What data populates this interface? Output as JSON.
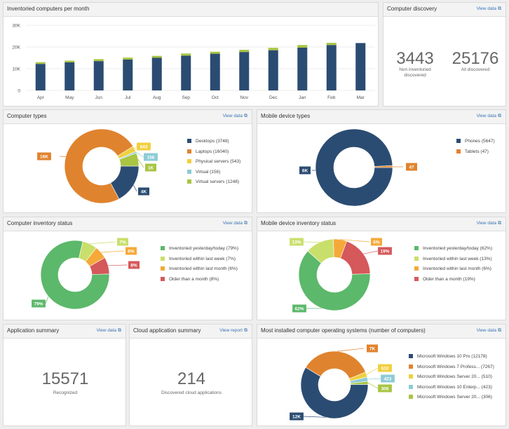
{
  "colors": {
    "navy": "#2b4c72",
    "orange": "#e0832e",
    "yellow": "#f1cf3d",
    "light_blue": "#8ccbd6",
    "lime": "#a8c543",
    "green": "#5cb86a",
    "light_green": "#c9df6b",
    "amber": "#f5a939",
    "red": "#d5585a",
    "link": "#3a74b4"
  },
  "panels": {
    "inventoried": {
      "title": "Inventoried computers per month"
    },
    "discovery": {
      "title": "Computer discovery",
      "link": "View data",
      "non_inventoried": "3443",
      "non_inventoried_label": "Non inventoried discovered",
      "all": "25176",
      "all_label": "All discovered"
    },
    "computer_types": {
      "title": "Computer types",
      "link": "View data",
      "legend": [
        {
          "label": "Desktops (3748)",
          "color": "#2b4c72"
        },
        {
          "label": "Laptops (16040)",
          "color": "#e0832e"
        },
        {
          "label": "Physical servers (543)",
          "color": "#f1cf3d"
        },
        {
          "label": "Virtual (156)",
          "color": "#8ccbd6"
        },
        {
          "label": "Virtual servers (1248)",
          "color": "#a8c543"
        }
      ],
      "labels": {
        "laptops": "16K",
        "physical": "543",
        "virtual": "156",
        "vservers": "1K",
        "desktops": "4K"
      }
    },
    "mobile_types": {
      "title": "Mobile device types",
      "link": "View data",
      "legend": [
        {
          "label": "Phones (5647)",
          "color": "#2b4c72"
        },
        {
          "label": "Tablets (47)",
          "color": "#e0832e"
        }
      ],
      "labels": {
        "phones": "6K",
        "tablets": "47"
      }
    },
    "inventory_status": {
      "title": "Computer inventory status",
      "link": "View data",
      "legend": [
        {
          "label": "Inventoried yesterday/today (79%)",
          "color": "#5cb86a"
        },
        {
          "label": "Inventoried within last week (7%)",
          "color": "#c9df6b"
        },
        {
          "label": "Inventoried within last month (6%)",
          "color": "#f5a939"
        },
        {
          "label": "Older than a month (8%)",
          "color": "#d5585a"
        }
      ],
      "labels": {
        "today": "79%",
        "week": "7%",
        "month": "6%",
        "older": "8%"
      }
    },
    "mobile_status": {
      "title": "Mobile device inventory status",
      "link": "View data",
      "legend": [
        {
          "label": "Inventoried yesterday/today (62%)",
          "color": "#5cb86a"
        },
        {
          "label": "Inventoried within last week (13%)",
          "color": "#c9df6b"
        },
        {
          "label": "Inventoried within last month (6%)",
          "color": "#f5a939"
        },
        {
          "label": "Older than a month (19%)",
          "color": "#d5585a"
        }
      ],
      "labels": {
        "today": "62%",
        "week": "13%",
        "month": "6%",
        "older": "19%"
      }
    },
    "app_summary": {
      "title": "Application summary",
      "link": "View data",
      "value": "15571",
      "value_label": "Recognized"
    },
    "cloud_summary": {
      "title": "Cloud application summary",
      "link": "View report",
      "value": "214",
      "value_label": "Discovered cloud applications"
    },
    "os": {
      "title": "Most installed computer operating systems (number of computers)",
      "link": "View data",
      "legend": [
        {
          "label": "Microsoft Windows 10 Pro (12178)",
          "color": "#2b4c72"
        },
        {
          "label": "Microsoft Windows 7 Profess... (7267)",
          "color": "#e0832e"
        },
        {
          "label": "Microsoft Windows Server 20... (510)",
          "color": "#f1cf3d"
        },
        {
          "label": "Microsoft Windows 10 Enterp... (423)",
          "color": "#8ccbd6"
        },
        {
          "label": "Microsoft Windows Server 20... (306)",
          "color": "#a8c543"
        }
      ],
      "labels": {
        "win10": "12K",
        "win7": "7K",
        "s1": "510",
        "ent": "423",
        "s2": "306"
      }
    }
  },
  "chart_data": [
    {
      "type": "bar",
      "categories": [
        "Apr",
        "May",
        "Jun",
        "Jul",
        "Aug",
        "Sep",
        "Oct",
        "Nov",
        "Dec",
        "Jan",
        "Feb",
        "Mar"
      ],
      "series": [
        {
          "values": [
            12200,
            12900,
            13500,
            14200,
            15000,
            16000,
            16900,
            17700,
            18500,
            19700,
            20900,
            21800
          ]
        },
        {
          "values": [
            800,
            800,
            900,
            900,
            900,
            1000,
            900,
            1000,
            1100,
            1200,
            1000,
            0
          ]
        }
      ],
      "yticks": [
        "0",
        "10K",
        "20K",
        "30K"
      ],
      "ylim": [
        0,
        30000
      ],
      "stacked": true,
      "grid": true
    },
    {
      "type": "pie",
      "categories": [
        "Desktops",
        "Laptops",
        "Physical servers",
        "Virtual",
        "Virtual servers"
      ],
      "values": [
        3748,
        16040,
        543,
        156,
        1248
      ]
    },
    {
      "type": "pie",
      "categories": [
        "Phones",
        "Tablets"
      ],
      "values": [
        5647,
        47
      ]
    },
    {
      "type": "pie",
      "categories": [
        "Inventoried yesterday/today",
        "Inventoried within last week",
        "Inventoried within last month",
        "Older than a month"
      ],
      "values": [
        79,
        7,
        6,
        8
      ]
    },
    {
      "type": "pie",
      "categories": [
        "Inventoried yesterday/today",
        "Inventoried within last week",
        "Inventoried within last month",
        "Older than a month"
      ],
      "values": [
        62,
        13,
        6,
        19
      ]
    },
    {
      "type": "pie",
      "categories": [
        "Microsoft Windows 10 Pro",
        "Microsoft Windows 7 Profess...",
        "Microsoft Windows Server 20...",
        "Microsoft Windows 10 Enterp...",
        "Microsoft Windows Server 20..."
      ],
      "values": [
        12178,
        7267,
        510,
        423,
        306
      ]
    }
  ]
}
